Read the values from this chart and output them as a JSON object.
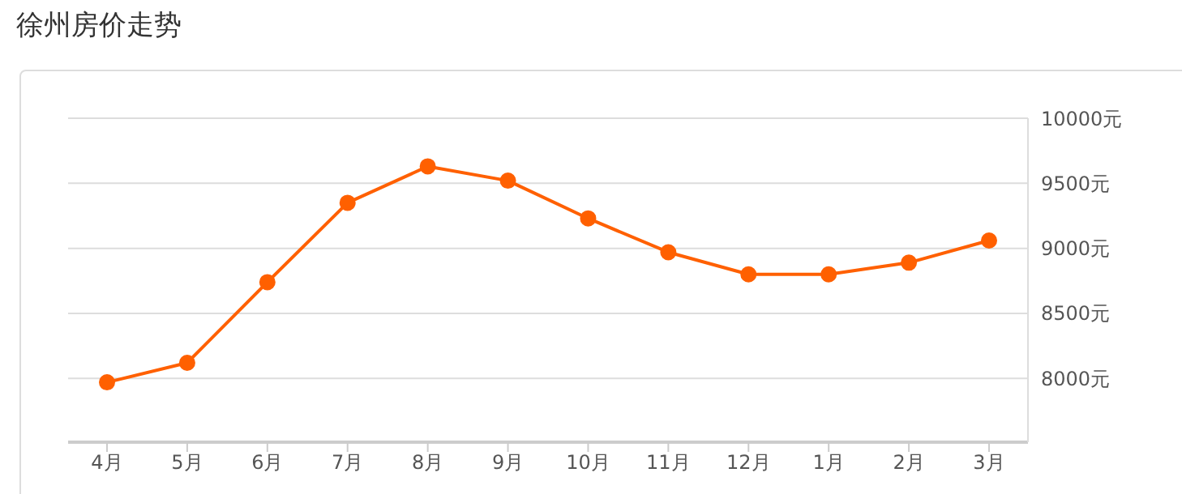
{
  "chart_data": {
    "type": "line",
    "title": "徐州房价走势",
    "categories": [
      "4月",
      "5月",
      "6月",
      "7月",
      "8月",
      "9月",
      "10月",
      "11月",
      "12月",
      "1月",
      "2月",
      "3月"
    ],
    "series": [
      {
        "color": "#ff6000",
        "values": [
          7970,
          8120,
          8740,
          9350,
          9630,
          9520,
          9230,
          8970,
          8800,
          8800,
          8890,
          9060
        ]
      }
    ],
    "ylim": [
      7510,
      10000
    ],
    "yticks": [
      {
        "value": 8000,
        "label": "8000元"
      },
      {
        "value": 8500,
        "label": "8500元"
      },
      {
        "value": 9000,
        "label": "9000元"
      },
      {
        "value": 9500,
        "label": "9500元"
      },
      {
        "value": 10000,
        "label": "10000元"
      }
    ],
    "grid": "y",
    "legend": false,
    "marker": "circle",
    "line_style": "solid"
  }
}
